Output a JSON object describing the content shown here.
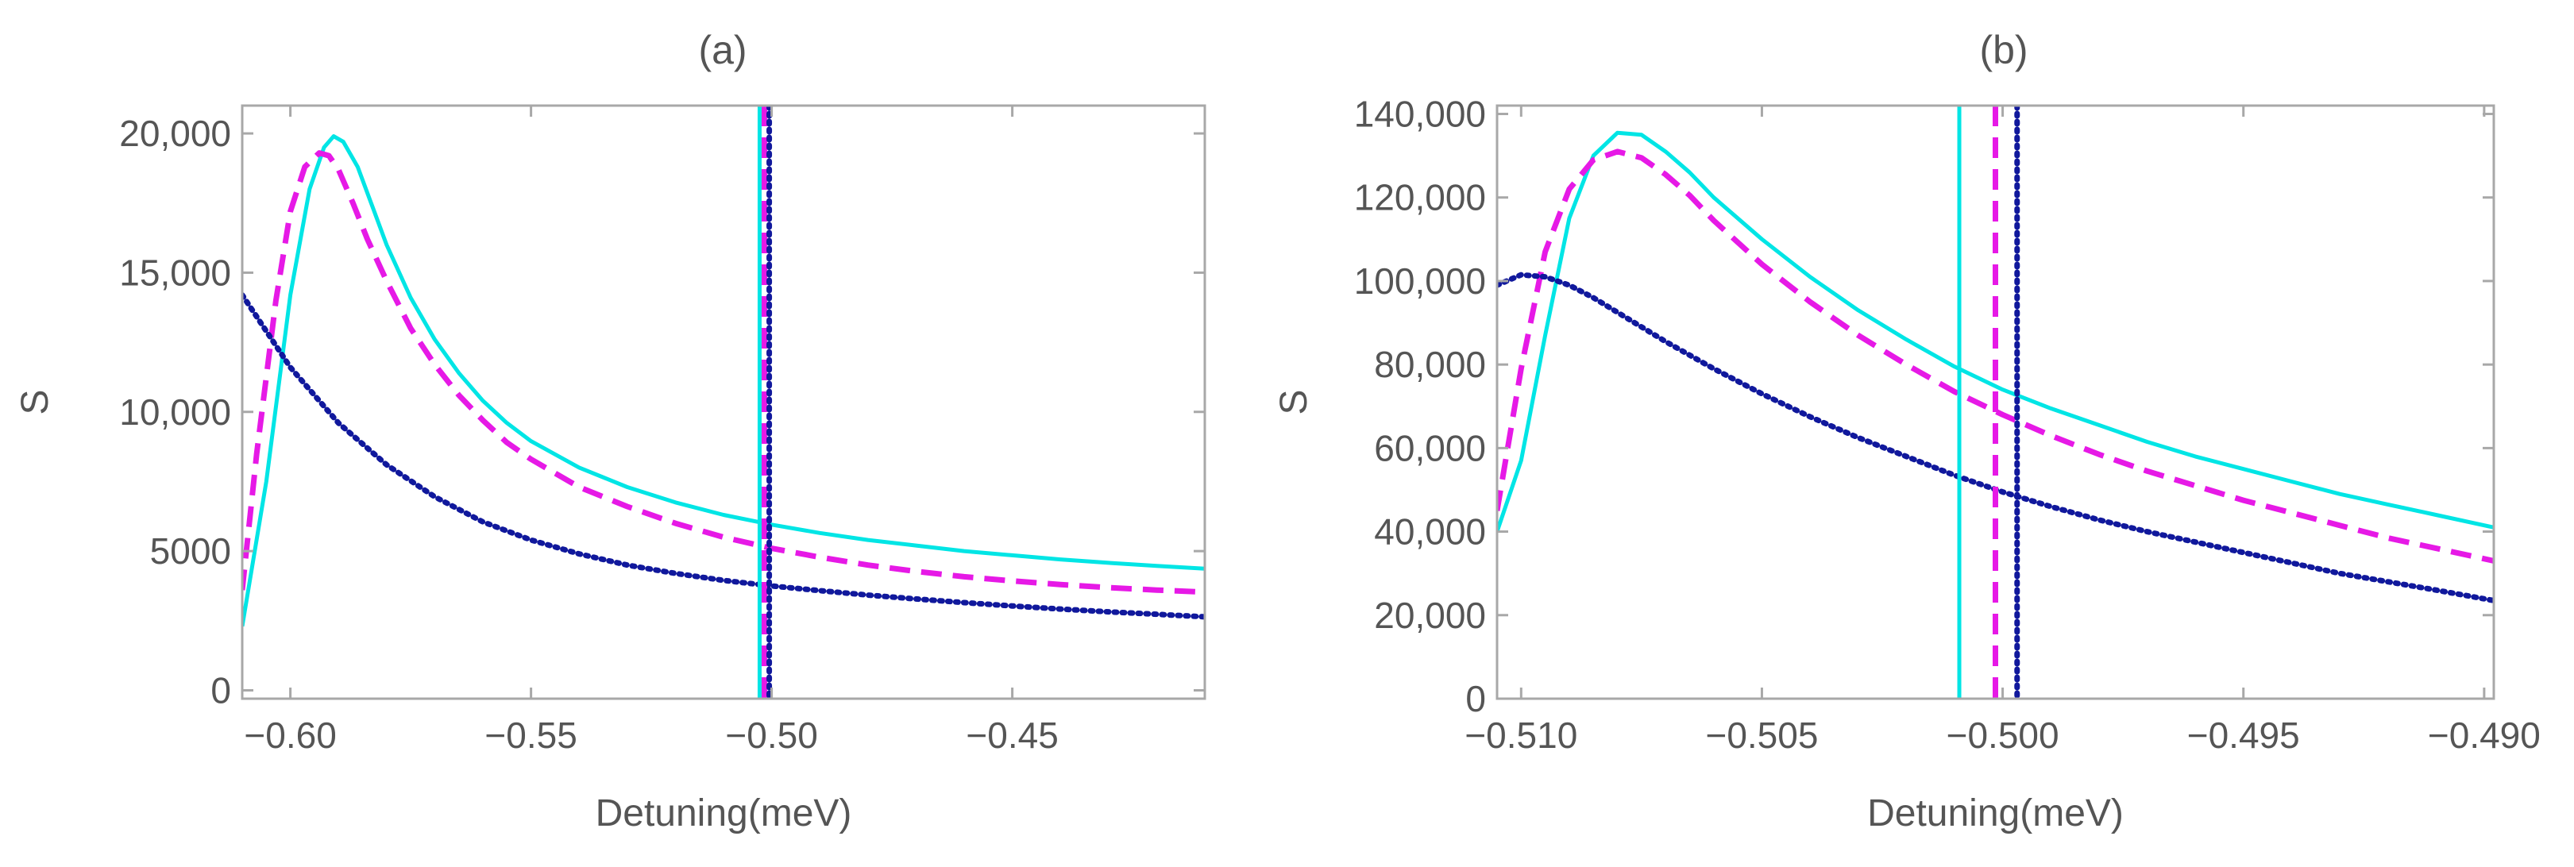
{
  "chart_data": [
    {
      "id": "a",
      "type": "line",
      "title": "(a)",
      "xlabel": "Detuning(meV)",
      "ylabel": "S",
      "xlim": [
        -0.61,
        -0.41
      ],
      "ylim": [
        -300,
        21000
      ],
      "xticks": [
        -0.6,
        -0.55,
        -0.5,
        -0.45
      ],
      "xtick_labels": [
        "−0.60",
        "−0.55",
        "−0.50",
        "−0.45"
      ],
      "yticks": [
        0,
        5000,
        10000,
        15000,
        20000
      ],
      "ytick_labels": [
        "0",
        "5000",
        "10,000",
        "15,000",
        "20,000"
      ],
      "series": [
        {
          "name": "solid cyan",
          "color": "#00e5e5",
          "style": "solid",
          "x": [
            -0.61,
            -0.605,
            -0.6,
            -0.596,
            -0.593,
            -0.591,
            -0.589,
            -0.586,
            -0.583,
            -0.58,
            -0.575,
            -0.57,
            -0.565,
            -0.56,
            -0.555,
            -0.55,
            -0.54,
            -0.53,
            -0.52,
            -0.51,
            -0.5,
            -0.49,
            -0.48,
            -0.47,
            -0.46,
            -0.45,
            -0.44,
            -0.43,
            -0.42,
            -0.41
          ],
          "y": [
            2300,
            7500,
            14200,
            18000,
            19500,
            19900,
            19700,
            18800,
            17400,
            16000,
            14100,
            12600,
            11400,
            10400,
            9600,
            8950,
            8000,
            7300,
            6750,
            6300,
            5950,
            5650,
            5400,
            5200,
            5000,
            4850,
            4700,
            4580,
            4470,
            4370
          ]
        },
        {
          "name": "dashed magenta",
          "color": "#e619e6",
          "style": "dashed",
          "x": [
            -0.61,
            -0.607,
            -0.603,
            -0.6,
            -0.597,
            -0.594,
            -0.592,
            -0.59,
            -0.587,
            -0.584,
            -0.58,
            -0.575,
            -0.57,
            -0.565,
            -0.56,
            -0.555,
            -0.55,
            -0.54,
            -0.53,
            -0.52,
            -0.51,
            -0.5,
            -0.49,
            -0.48,
            -0.47,
            -0.46,
            -0.45,
            -0.44,
            -0.43,
            -0.42,
            -0.41
          ],
          "y": [
            3600,
            8500,
            14000,
            17200,
            18800,
            19300,
            19200,
            18700,
            17500,
            16200,
            14700,
            13000,
            11700,
            10600,
            9700,
            8900,
            8300,
            7300,
            6600,
            6000,
            5500,
            5100,
            4780,
            4500,
            4270,
            4080,
            3930,
            3800,
            3690,
            3600,
            3530
          ]
        },
        {
          "name": "dotted navy",
          "color": "#10189c",
          "style": "dotted",
          "x": [
            -0.61,
            -0.6,
            -0.59,
            -0.58,
            -0.57,
            -0.56,
            -0.55,
            -0.54,
            -0.53,
            -0.52,
            -0.51,
            -0.5,
            -0.49,
            -0.48,
            -0.47,
            -0.46,
            -0.45,
            -0.44,
            -0.43,
            -0.42,
            -0.41
          ],
          "y": [
            14200,
            11600,
            9600,
            8100,
            6950,
            6050,
            5400,
            4900,
            4500,
            4200,
            3950,
            3750,
            3580,
            3420,
            3280,
            3150,
            3030,
            2920,
            2820,
            2730,
            2640
          ]
        }
      ],
      "vlines": [
        {
          "x": -0.5025,
          "color": "#00e5e5",
          "style": "solid"
        },
        {
          "x": -0.5015,
          "color": "#e619e6",
          "style": "dashed"
        },
        {
          "x": -0.5005,
          "color": "#10189c",
          "style": "dotted"
        }
      ]
    },
    {
      "id": "b",
      "type": "line",
      "title": "(b)",
      "xlabel": "Detuning(meV)",
      "ylabel": "S",
      "xlim": [
        -0.5105,
        -0.4898
      ],
      "ylim": [
        0,
        142000
      ],
      "xticks": [
        -0.51,
        -0.505,
        -0.5,
        -0.495,
        -0.49
      ],
      "xtick_labels": [
        "−0.510",
        "−0.505",
        "−0.500",
        "−0.495",
        "−0.490"
      ],
      "yticks": [
        0,
        20000,
        40000,
        60000,
        80000,
        100000,
        120000,
        140000
      ],
      "ytick_labels": [
        "0",
        "20,000",
        "40,000",
        "60,000",
        "80,000",
        "100,000",
        "120,000",
        "140,000"
      ],
      "series": [
        {
          "name": "solid cyan",
          "color": "#00e5e5",
          "style": "solid",
          "x": [
            -0.5105,
            -0.51,
            -0.5095,
            -0.509,
            -0.5085,
            -0.508,
            -0.5075,
            -0.507,
            -0.5065,
            -0.506,
            -0.505,
            -0.504,
            -0.503,
            -0.502,
            -0.501,
            -0.5,
            -0.499,
            -0.498,
            -0.497,
            -0.496,
            -0.495,
            -0.494,
            -0.493,
            -0.492,
            -0.491,
            -0.4898
          ],
          "y": [
            40000,
            57000,
            87000,
            115000,
            130000,
            135500,
            135000,
            131000,
            126000,
            120000,
            110000,
            101000,
            93000,
            86000,
            79500,
            74000,
            69500,
            65500,
            61500,
            58000,
            55000,
            52000,
            49000,
            46500,
            44000,
            41000
          ]
        },
        {
          "name": "dashed magenta",
          "color": "#e619e6",
          "style": "dashed",
          "x": [
            -0.5105,
            -0.51,
            -0.5095,
            -0.509,
            -0.5085,
            -0.508,
            -0.5075,
            -0.507,
            -0.5065,
            -0.506,
            -0.505,
            -0.504,
            -0.503,
            -0.502,
            -0.501,
            -0.5,
            -0.499,
            -0.498,
            -0.497,
            -0.496,
            -0.495,
            -0.494,
            -0.493,
            -0.492,
            -0.491,
            -0.4898
          ],
          "y": [
            45000,
            79000,
            107000,
            122000,
            129000,
            131000,
            129500,
            125500,
            120500,
            114500,
            104000,
            95000,
            87000,
            80000,
            73500,
            68000,
            63000,
            58500,
            54500,
            51000,
            47500,
            44500,
            41500,
            38500,
            36000,
            33000
          ]
        },
        {
          "name": "dotted navy",
          "color": "#10189c",
          "style": "dotted",
          "x": [
            -0.5105,
            -0.51,
            -0.5095,
            -0.509,
            -0.5085,
            -0.508,
            -0.507,
            -0.506,
            -0.505,
            -0.504,
            -0.503,
            -0.502,
            -0.501,
            -0.5,
            -0.499,
            -0.498,
            -0.497,
            -0.496,
            -0.495,
            -0.494,
            -0.493,
            -0.492,
            -0.491,
            -0.4898
          ],
          "y": [
            99000,
            101500,
            101000,
            99000,
            96000,
            92500,
            85500,
            79000,
            73000,
            67500,
            62500,
            58000,
            53500,
            49500,
            46000,
            42800,
            40000,
            37500,
            35000,
            32500,
            30000,
            28000,
            26000,
            23500
          ]
        }
      ],
      "vlines": [
        {
          "x": -0.5009,
          "color": "#00e5e5",
          "style": "solid"
        },
        {
          "x": -0.50015,
          "color": "#e619e6",
          "style": "dashed"
        },
        {
          "x": -0.4997,
          "color": "#10189c",
          "style": "dotted"
        }
      ]
    }
  ]
}
